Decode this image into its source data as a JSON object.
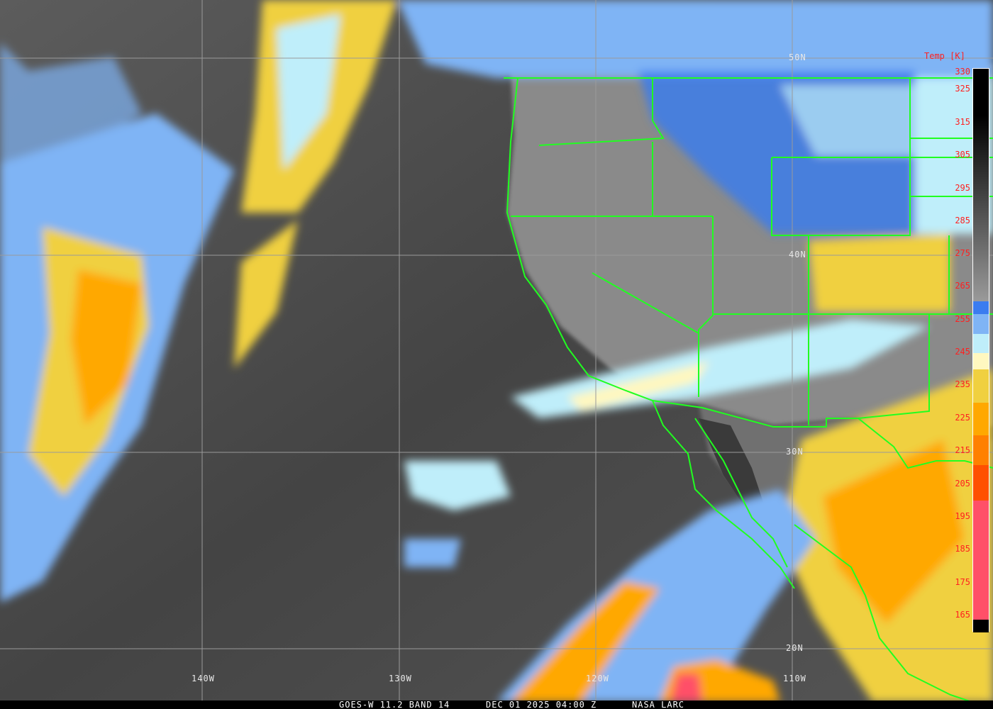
{
  "caption": {
    "product": "GOES-W 11.2 BAND 14",
    "datetime": "DEC 01 2025 04:00 Z",
    "source": "NASA LARC"
  },
  "legend": {
    "title": "Temp [K]",
    "ticks": [
      "330",
      "325",
      "315",
      "305",
      "295",
      "285",
      "275",
      "265",
      "255",
      "245",
      "235",
      "225",
      "215",
      "205",
      "195",
      "185",
      "175",
      "165"
    ],
    "colors": {
      "warm_gray_top": "#000000",
      "warm_gray_bottom": "#9a9a9a",
      "blue": "#3a7cf0",
      "light_blue": "#7fb4f5",
      "pale_cyan": "#bfeefa",
      "pale_yellow": "#fff8c0",
      "yellow": "#f0d040",
      "orange": "#ffa800",
      "dark_orange": "#ff8000",
      "red_orange": "#ff5000",
      "pink": "#ff5068"
    }
  },
  "grid": {
    "latitudes": [
      "50N",
      "40N",
      "30N",
      "20N"
    ],
    "longitudes": [
      "140W",
      "130W",
      "120W",
      "110W"
    ]
  },
  "border_color": "#20ff20"
}
